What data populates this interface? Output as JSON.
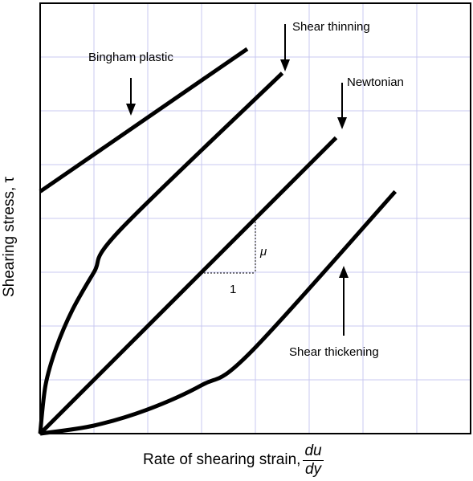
{
  "chart_data": {
    "type": "line",
    "xlabel": "Rate of shearing strain,",
    "xlabel_fraction": {
      "numerator": "du",
      "denominator": "dy"
    },
    "ylabel": "Shearing stress, τ",
    "grid": true,
    "grid_color": "#c8c8f0",
    "curve_color": "#000000",
    "series": [
      {
        "name": "Bingham plastic",
        "x": [
          0.0,
          3.85
        ],
        "y": [
          4.5,
          7.15
        ]
      },
      {
        "name": "Shear thinning",
        "x": [
          0.0,
          0.1,
          0.3,
          0.6,
          1.0,
          1.5,
          4.5
        ],
        "y": [
          0.0,
          0.9,
          1.6,
          2.3,
          3.0,
          3.8,
          6.7
        ]
      },
      {
        "name": "Newtonian",
        "x": [
          0.0,
          5.5
        ],
        "y": [
          0.0,
          5.5
        ]
      },
      {
        "name": "Shear thickening",
        "x": [
          0.0,
          1.0,
          2.0,
          3.0,
          3.9,
          6.6
        ],
        "y": [
          0.0,
          0.15,
          0.45,
          0.9,
          1.5,
          4.5
        ]
      }
    ],
    "slope_label": "μ",
    "run_label": "1"
  }
}
